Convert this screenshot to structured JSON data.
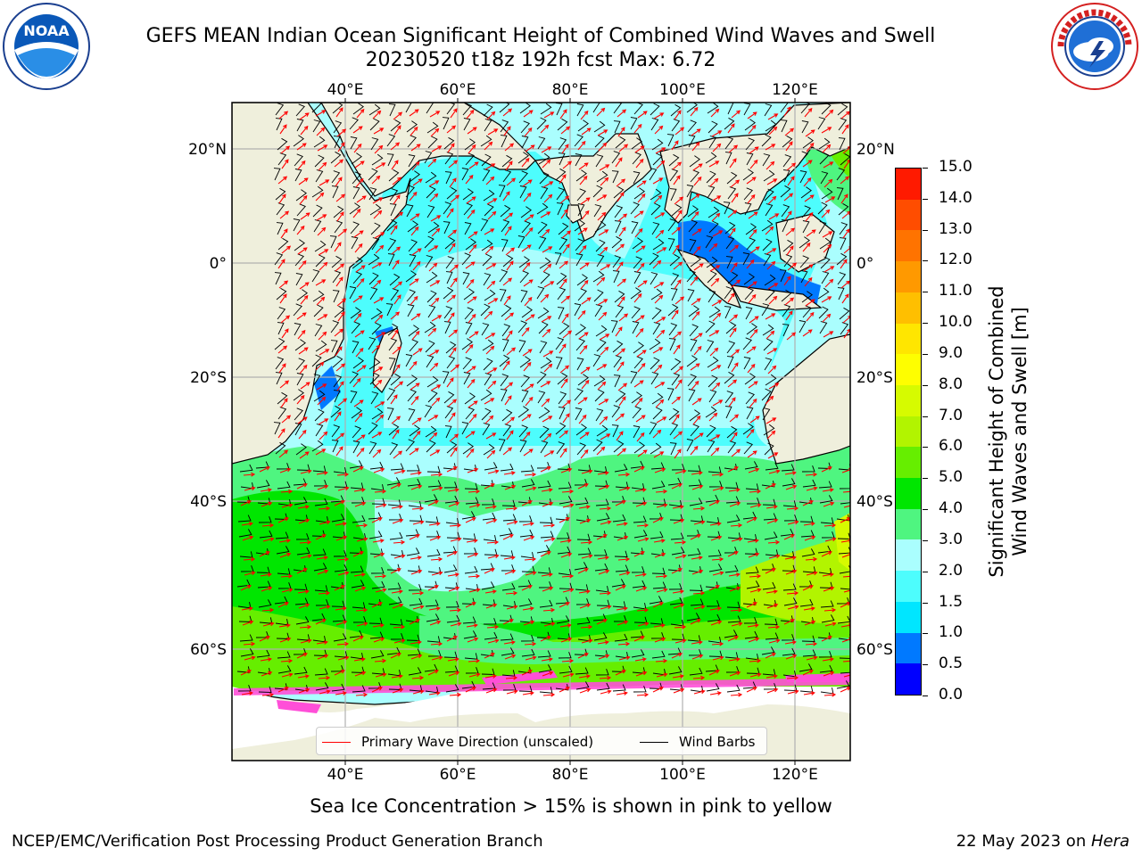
{
  "title": {
    "line1": "GEFS MEAN Indian Ocean Significant Height of Combined Wind Waves and Swell",
    "line2": "20230520 t18z 192h fcst   Max: 6.72"
  },
  "logos": {
    "left": {
      "icon": "noaa-logo-icon",
      "text": "NOAA",
      "ring_text": "NATIONAL OCEANIC AND ATMOSPHERIC ADMINISTRATION · U.S. DEPARTMENT OF COMMERCE"
    },
    "right": {
      "icon": "nws-logo-icon",
      "ring_text": "NATIONAL WEATHER SERVICE"
    }
  },
  "map": {
    "lon_labels": [
      "40°E",
      "60°E",
      "80°E",
      "100°E",
      "120°E"
    ],
    "lat_labels_left": [
      "20°N",
      "0°",
      "20°S",
      "40°S",
      "60°S"
    ],
    "lat_labels_right": [
      "20°N",
      "0°",
      "20°S",
      "40°S",
      "60°S"
    ],
    "legend": {
      "wave_label": "Primary Wave Direction (unscaled)",
      "barb_label": "Wind Barbs",
      "wave_color": "#ff0000",
      "barb_color": "#000000"
    },
    "colors": {
      "land": "#efefdc",
      "ice": "#ffffff",
      "grid": "#b0b0b0",
      "ice_pink": "#ff4fd8"
    }
  },
  "colorbar": {
    "title_line1": "Significant Height of Combined",
    "title_line2": "Wind Waves and Swell [m]",
    "tick_labels": [
      "0.0",
      "0.5",
      "1.0",
      "1.5",
      "2.0",
      "3.0",
      "4.0",
      "5.0",
      "6.0",
      "7.0",
      "8.0",
      "9.0",
      "10.0",
      "11.0",
      "12.0",
      "13.0",
      "14.0",
      "15.0"
    ],
    "colors": [
      "#0000ff",
      "#0079ff",
      "#00e6ff",
      "#4dfdfd",
      "#aafefe",
      "#4ff580",
      "#00e600",
      "#66ee00",
      "#b2f400",
      "#d6fb00",
      "#fefe00",
      "#ffe600",
      "#ffbf00",
      "#ff9900",
      "#ff7300",
      "#ff4d00",
      "#ff1a00"
    ]
  },
  "footer": {
    "note": "Sea Ice Concentration > 15% is shown in pink to yellow",
    "credit": "NCEP/EMC/Verification Post Processing Product Generation Branch",
    "date": "22 May 2023 on ",
    "machine": "Hera"
  }
}
